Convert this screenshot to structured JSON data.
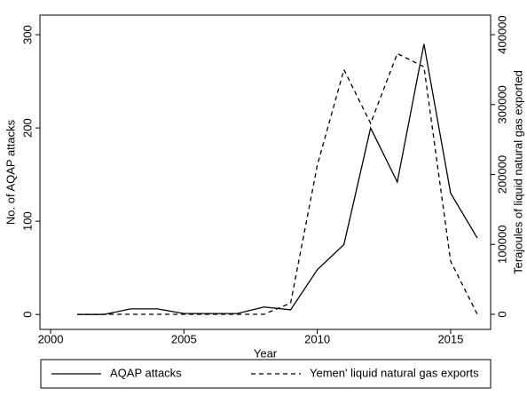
{
  "chart_data": {
    "type": "line",
    "x": [
      2001,
      2002,
      2003,
      2004,
      2005,
      2006,
      2007,
      2008,
      2009,
      2010,
      2011,
      2012,
      2013,
      2014,
      2015,
      2016
    ],
    "x_label": "Year",
    "y_label": "No. of AQAP attacks",
    "y2_label": "Terajoules of liquid natural gas exported",
    "xlim": [
      1999.6,
      2016.5
    ],
    "xticks": [
      2000,
      2005,
      2010,
      2015
    ],
    "ylim": [
      -16,
      321
    ],
    "yticks": [
      0,
      100,
      200,
      300
    ],
    "y2lim": [
      -21600,
      428000
    ],
    "y2ticks": [
      0,
      100000,
      200000,
      300000,
      400000
    ],
    "series": [
      {
        "name": "AQAP attacks",
        "color": "#000000",
        "dash": "none",
        "values": [
          0,
          0,
          6,
          6,
          1,
          1,
          1,
          8,
          5,
          48,
          75,
          200,
          142,
          290,
          130,
          82
        ]
      },
      {
        "name": "Yemen' liquid natural gas exports",
        "color": "#000000",
        "dash": "5,4",
        "axis": "y2",
        "values": [
          0,
          0,
          0,
          0,
          0,
          0,
          0,
          0,
          16000,
          213000,
          350000,
          273000,
          373000,
          354000,
          76000,
          0
        ]
      }
    ]
  }
}
